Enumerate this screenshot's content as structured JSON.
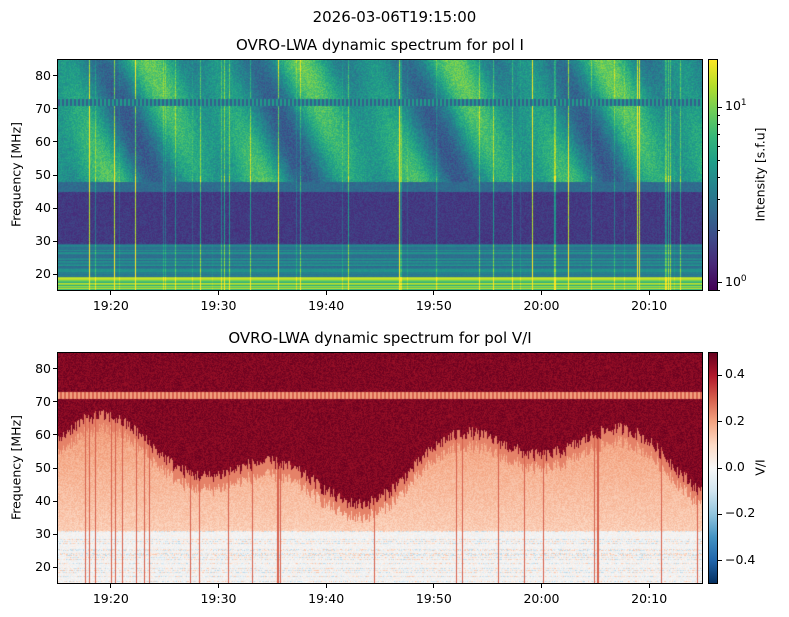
{
  "suptitle": "2026-03-06T19:15:00",
  "chart_data": [
    {
      "type": "heatmap",
      "title": "OVRO-LWA dynamic spectrum for pol I",
      "xlabel": "",
      "ylabel": "Frequency [MHz]",
      "xlim": [
        "19:15",
        "20:15"
      ],
      "ylim": [
        15,
        85
      ],
      "xticks": [
        "19:20",
        "19:30",
        "19:40",
        "19:50",
        "20:00",
        "20:10"
      ],
      "yticks": [
        20,
        30,
        40,
        50,
        60,
        70,
        80
      ],
      "colormap": "viridis",
      "colorbar": {
        "label": "Intensity [s.f.u]",
        "scale": "log",
        "range": [
          0.9,
          18.8
        ],
        "ticks": [
          {
            "value": 1,
            "label_base": "10",
            "label_exp": "0"
          },
          {
            "value": 10,
            "label_base": "10",
            "label_exp": "1"
          }
        ]
      }
    },
    {
      "type": "heatmap",
      "title": "OVRO-LWA dynamic spectrum for pol V/I",
      "xlabel": "",
      "ylabel": "Frequency [MHz]",
      "xlim": [
        "19:15",
        "20:15"
      ],
      "ylim": [
        15,
        85
      ],
      "xticks": [
        "19:20",
        "19:30",
        "19:40",
        "19:50",
        "20:00",
        "20:10"
      ],
      "yticks": [
        20,
        30,
        40,
        50,
        60,
        70,
        80
      ],
      "colormap": "RdBu_r",
      "colorbar": {
        "label": "V/I",
        "scale": "linear",
        "range": [
          -0.5,
          0.5
        ],
        "ticks": [
          {
            "value": 0.4,
            "label": "0.4"
          },
          {
            "value": 0.2,
            "label": "0.2"
          },
          {
            "value": 0.0,
            "label": "0.0"
          },
          {
            "value": -0.2,
            "label": "−0.2"
          },
          {
            "value": -0.4,
            "label": "−0.4"
          }
        ]
      }
    }
  ]
}
